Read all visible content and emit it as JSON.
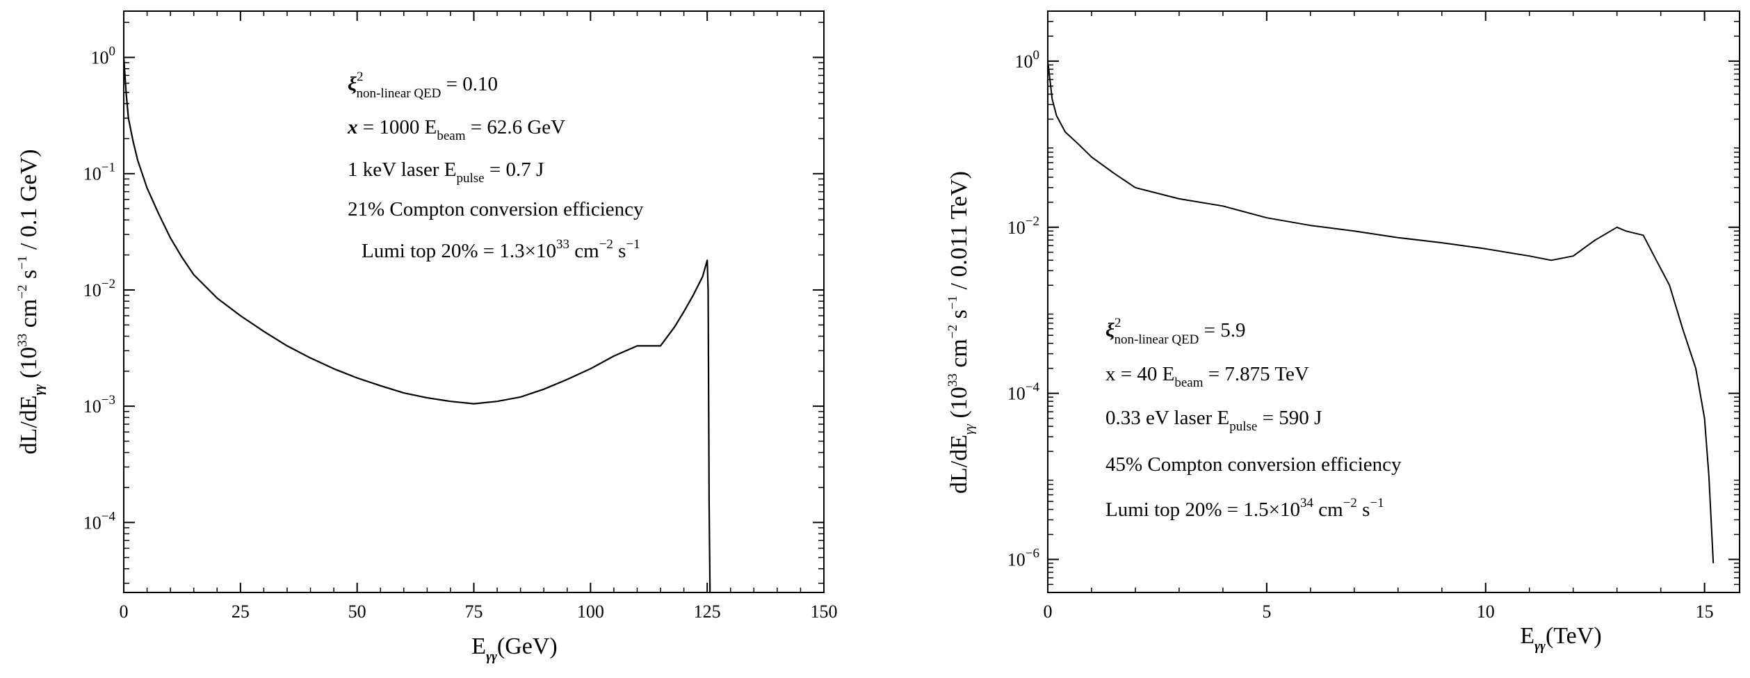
{
  "chart_data": [
    {
      "type": "line",
      "title": "",
      "xlabel": "E",
      "xlabel_sub": "γγ",
      "xlabel_unit": "(GeV)",
      "ylabel_main": "dL/dE",
      "ylabel_sub": "γγ",
      "ylabel_units": "(10^33 cm^-2 s^-1 / 0.1 GeV)",
      "xlim": [
        0,
        150
      ],
      "ylim": [
        2.5e-05,
        2.5
      ],
      "yscale": "log",
      "xticks": [
        0,
        25,
        50,
        75,
        100,
        125,
        150
      ],
      "xtick_labels": [
        "0",
        "25",
        "50",
        "75",
        "100",
        "125",
        "150"
      ],
      "yticks": [
        0.0001,
        0.001,
        0.01,
        0.1,
        1
      ],
      "ytick_labels": [
        {
          "base": "10",
          "exp": "−4"
        },
        {
          "base": "10",
          "exp": "−3"
        },
        {
          "base": "10",
          "exp": "−2"
        },
        {
          "base": "10",
          "exp": "−1"
        },
        {
          "base": "10",
          "exp": "0"
        }
      ],
      "grid": false,
      "line_color": "#000000",
      "series": [
        {
          "x": [
            0,
            0.5,
            1,
            2,
            3,
            5,
            7.5,
            10,
            12.5,
            15,
            20,
            25,
            30,
            35,
            40,
            45,
            50,
            55,
            60,
            65,
            70,
            75,
            80,
            85,
            90,
            95,
            100,
            105,
            110,
            115,
            118,
            120,
            122,
            124,
            125,
            125.2,
            125.4,
            125.6
          ],
          "y": [
            1.0,
            0.5,
            0.3,
            0.19,
            0.13,
            0.075,
            0.045,
            0.028,
            0.019,
            0.0135,
            0.0085,
            0.006,
            0.0044,
            0.0033,
            0.0026,
            0.0021,
            0.00175,
            0.0015,
            0.0013,
            0.00118,
            0.0011,
            0.00105,
            0.0011,
            0.0012,
            0.0014,
            0.0017,
            0.0021,
            0.0027,
            0.0033,
            0.0033,
            0.0048,
            0.0065,
            0.009,
            0.013,
            0.018,
            0.01,
            0.00015,
            2.5e-05
          ]
        }
      ],
      "annotations": {
        "line1_sym": "ξ",
        "line1_sup": "2",
        "line1_sub": "non-linear QED",
        "line1_val": " = 0.10",
        "line2_x": "x",
        "line2_mid": " = 1000  E",
        "line2_sub": "beam",
        "line2_val": " = 62.6 GeV",
        "line3_a": "1 keV laser    E",
        "line3_sub": "pulse",
        "line3_val": " = 0.7 J",
        "line4": "21% Compton conversion efficiency",
        "line5_a": "Lumi top 20% = 1.3×10",
        "line5_exp": "33",
        "line5_b": " cm",
        "line5_exp2": "−2",
        "line5_c": "  s",
        "line5_exp3": "−1",
        "line5_color": "#ff0000"
      }
    },
    {
      "type": "line",
      "title": "",
      "xlabel": "E",
      "xlabel_sub": "γγ",
      "xlabel_unit": "(TeV)",
      "ylabel_main": "dL/dE",
      "ylabel_sub": "γγ",
      "ylabel_units": "(10^33 cm^-2 s^-1 / 0.011 TeV)",
      "xlim": [
        0,
        15.8
      ],
      "ylim": [
        4e-07,
        4
      ],
      "yscale": "log",
      "xticks": [
        0,
        5,
        10,
        15
      ],
      "xtick_labels": [
        "0",
        "5",
        "10",
        "15"
      ],
      "yticks": [
        1e-06,
        0.0001,
        0.01,
        1
      ],
      "ytick_labels": [
        {
          "base": "10",
          "exp": "−6"
        },
        {
          "base": "10",
          "exp": "−4"
        },
        {
          "base": "10",
          "exp": "−2"
        },
        {
          "base": "10",
          "exp": "0"
        }
      ],
      "grid": false,
      "line_color": "#000000",
      "series": [
        {
          "x": [
            0,
            0.05,
            0.1,
            0.2,
            0.4,
            0.7,
            1,
            1.5,
            2,
            3,
            4,
            5,
            6,
            7,
            8,
            9,
            10,
            11,
            11.5,
            12,
            12.5,
            13,
            13.2,
            13.6,
            13.9,
            14.2,
            14.5,
            14.8,
            15,
            15.1,
            15.2
          ],
          "y": [
            1.0,
            0.6,
            0.35,
            0.22,
            0.14,
            0.1,
            0.07,
            0.045,
            0.03,
            0.022,
            0.018,
            0.013,
            0.0105,
            0.009,
            0.0075,
            0.0065,
            0.0055,
            0.0045,
            0.004,
            0.0045,
            0.007,
            0.01,
            0.009,
            0.008,
            0.004,
            0.002,
            0.0006,
            0.0002,
            5e-05,
            1e-05,
            9e-07
          ]
        }
      ],
      "annotations": {
        "line1_sym": "ξ",
        "line1_sup": "2",
        "line1_sub": "non-linear QED",
        "line1_val": " = 5.9",
        "line2_a": "x = 40    E",
        "line2_sub": "beam",
        "line2_val": " = 7.875 TeV",
        "line3_a": "0.33 eV laser    E",
        "line3_sub": "pulse",
        "line3_val": " = 590 J",
        "line4": "45% Compton conversion efficiency",
        "line5_a": "Lumi top 20% = 1.5×10",
        "line5_exp": "34",
        "line5_b": "  cm",
        "line5_exp2": "−2",
        "line5_c": "  s",
        "line5_exp3": "−1",
        "line5_color": "#ff0000"
      }
    }
  ]
}
